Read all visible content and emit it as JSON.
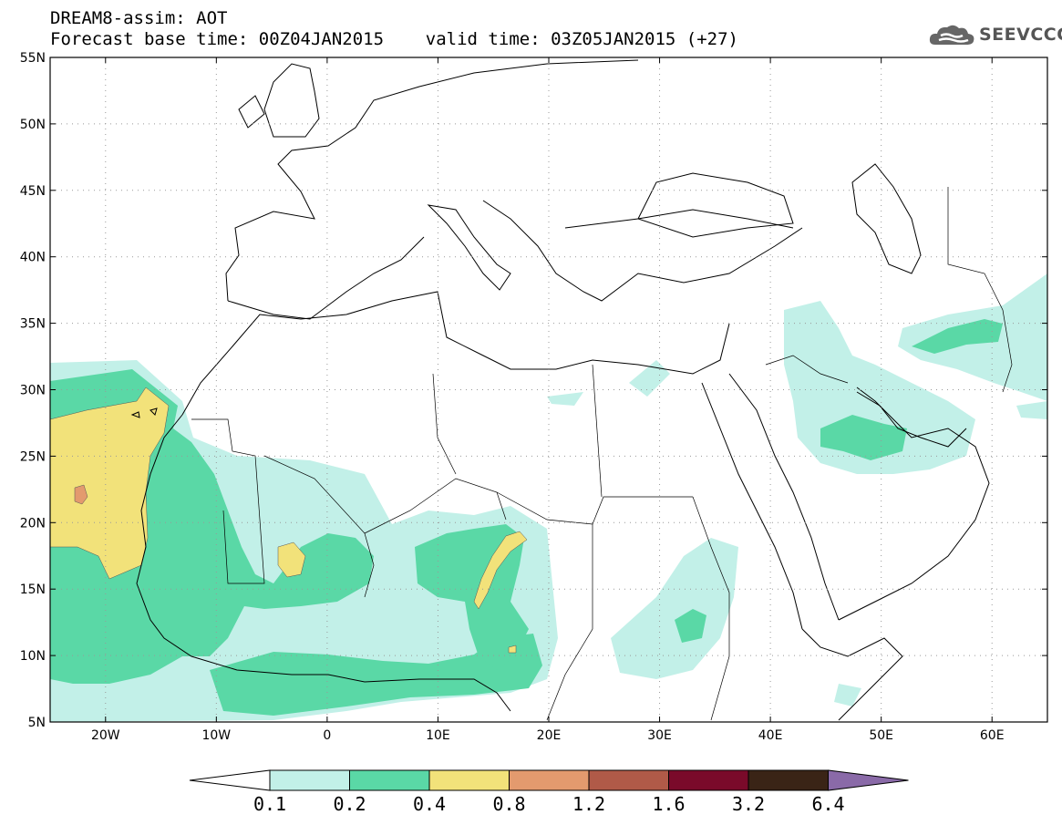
{
  "header": {
    "line1": "DREAM8-assim: AOT",
    "line2": "Forecast base time: 00Z04JAN2015    valid time: 03Z05JAN2015 (+27)"
  },
  "logo": {
    "text": "SEEVCCC",
    "icon": "cloud-icon"
  },
  "map": {
    "lon_range": [
      -25,
      65
    ],
    "lat_range": [
      5,
      55
    ],
    "grid": "dotted",
    "lat_labels": [
      "55N",
      "50N",
      "45N",
      "40N",
      "35N",
      "30N",
      "25N",
      "20N",
      "15N",
      "10N",
      "5N"
    ],
    "lon_labels": [
      "20W",
      "10W",
      "0",
      "10E",
      "20E",
      "30E",
      "40E",
      "50E",
      "60E"
    ]
  },
  "colorbar": {
    "labels": [
      "0.1",
      "0.2",
      "0.4",
      "0.8",
      "1.2",
      "1.6",
      "3.2",
      "6.4"
    ],
    "colors": [
      "#ffffff",
      "#c2f0e8",
      "#5ad8a6",
      "#f2e27a",
      "#e39a6e",
      "#b05a48",
      "#7a0a2a",
      "#3a2416",
      "#8a6aa8"
    ]
  }
}
